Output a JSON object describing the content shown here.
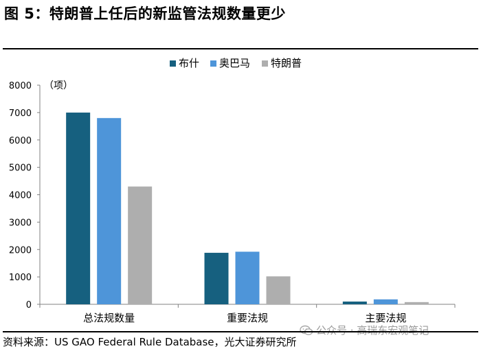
{
  "figure": {
    "title": "图 5：特朗普上任后的新监管法规数量更少",
    "source": "资料来源：US GAO Federal Rule Database，光大证券研究所"
  },
  "watermark": {
    "text": "公众号 · 高瑞东宏观笔记",
    "icon": "wechat-icon"
  },
  "chart_data": {
    "type": "bar",
    "title": "",
    "xlabel": "",
    "ylabel": "（项）",
    "ylim": [
      0,
      8000
    ],
    "yticks": [
      0,
      1000,
      2000,
      3000,
      4000,
      5000,
      6000,
      7000,
      8000
    ],
    "grid": false,
    "legend_position": "top-center",
    "categories": [
      "总法规数量",
      "重要法规",
      "主要法规"
    ],
    "series": [
      {
        "name": "布什",
        "color": "#16607f",
        "values": [
          7000,
          1880,
          100
        ]
      },
      {
        "name": "奥巴马",
        "color": "#4e95d9",
        "values": [
          6800,
          1920,
          180
        ]
      },
      {
        "name": "特朗普",
        "color": "#aeaeae",
        "values": [
          4300,
          1020,
          80
        ]
      }
    ]
  }
}
